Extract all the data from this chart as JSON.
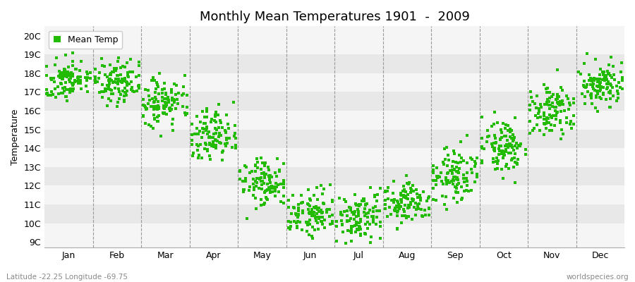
{
  "title": "Monthly Mean Temperatures 1901  -  2009",
  "ylabel": "Temperature",
  "dot_color": "#22bb00",
  "bg_color": "#ffffff",
  "plot_bg_light": "#f5f5f5",
  "plot_bg_dark": "#e8e8e8",
  "ytick_labels": [
    "9C",
    "10C",
    "11C",
    "12C",
    "13C",
    "14C",
    "15C",
    "16C",
    "17C",
    "18C",
    "19C",
    "20C"
  ],
  "ytick_values": [
    9,
    10,
    11,
    12,
    13,
    14,
    15,
    16,
    17,
    18,
    19,
    20
  ],
  "ylim": [
    8.7,
    20.5
  ],
  "months": [
    "Jan",
    "Feb",
    "Mar",
    "Apr",
    "May",
    "Jun",
    "Jul",
    "Aug",
    "Sep",
    "Oct",
    "Nov",
    "Dec"
  ],
  "n_years": 109,
  "subtitle_left": "Latitude -22.25 Longitude -69.75",
  "subtitle_right": "worldspecies.org",
  "marker_size": 2.5,
  "title_fontsize": 13,
  "axis_fontsize": 9,
  "legend_fontsize": 9,
  "mean_temps": [
    17.6,
    17.5,
    16.4,
    14.6,
    12.1,
    10.5,
    10.2,
    11.0,
    12.5,
    14.1,
    16.0,
    17.4
  ],
  "std_devs": [
    0.55,
    0.6,
    0.65,
    0.75,
    0.65,
    0.6,
    0.65,
    0.6,
    0.7,
    0.75,
    0.7,
    0.55
  ]
}
